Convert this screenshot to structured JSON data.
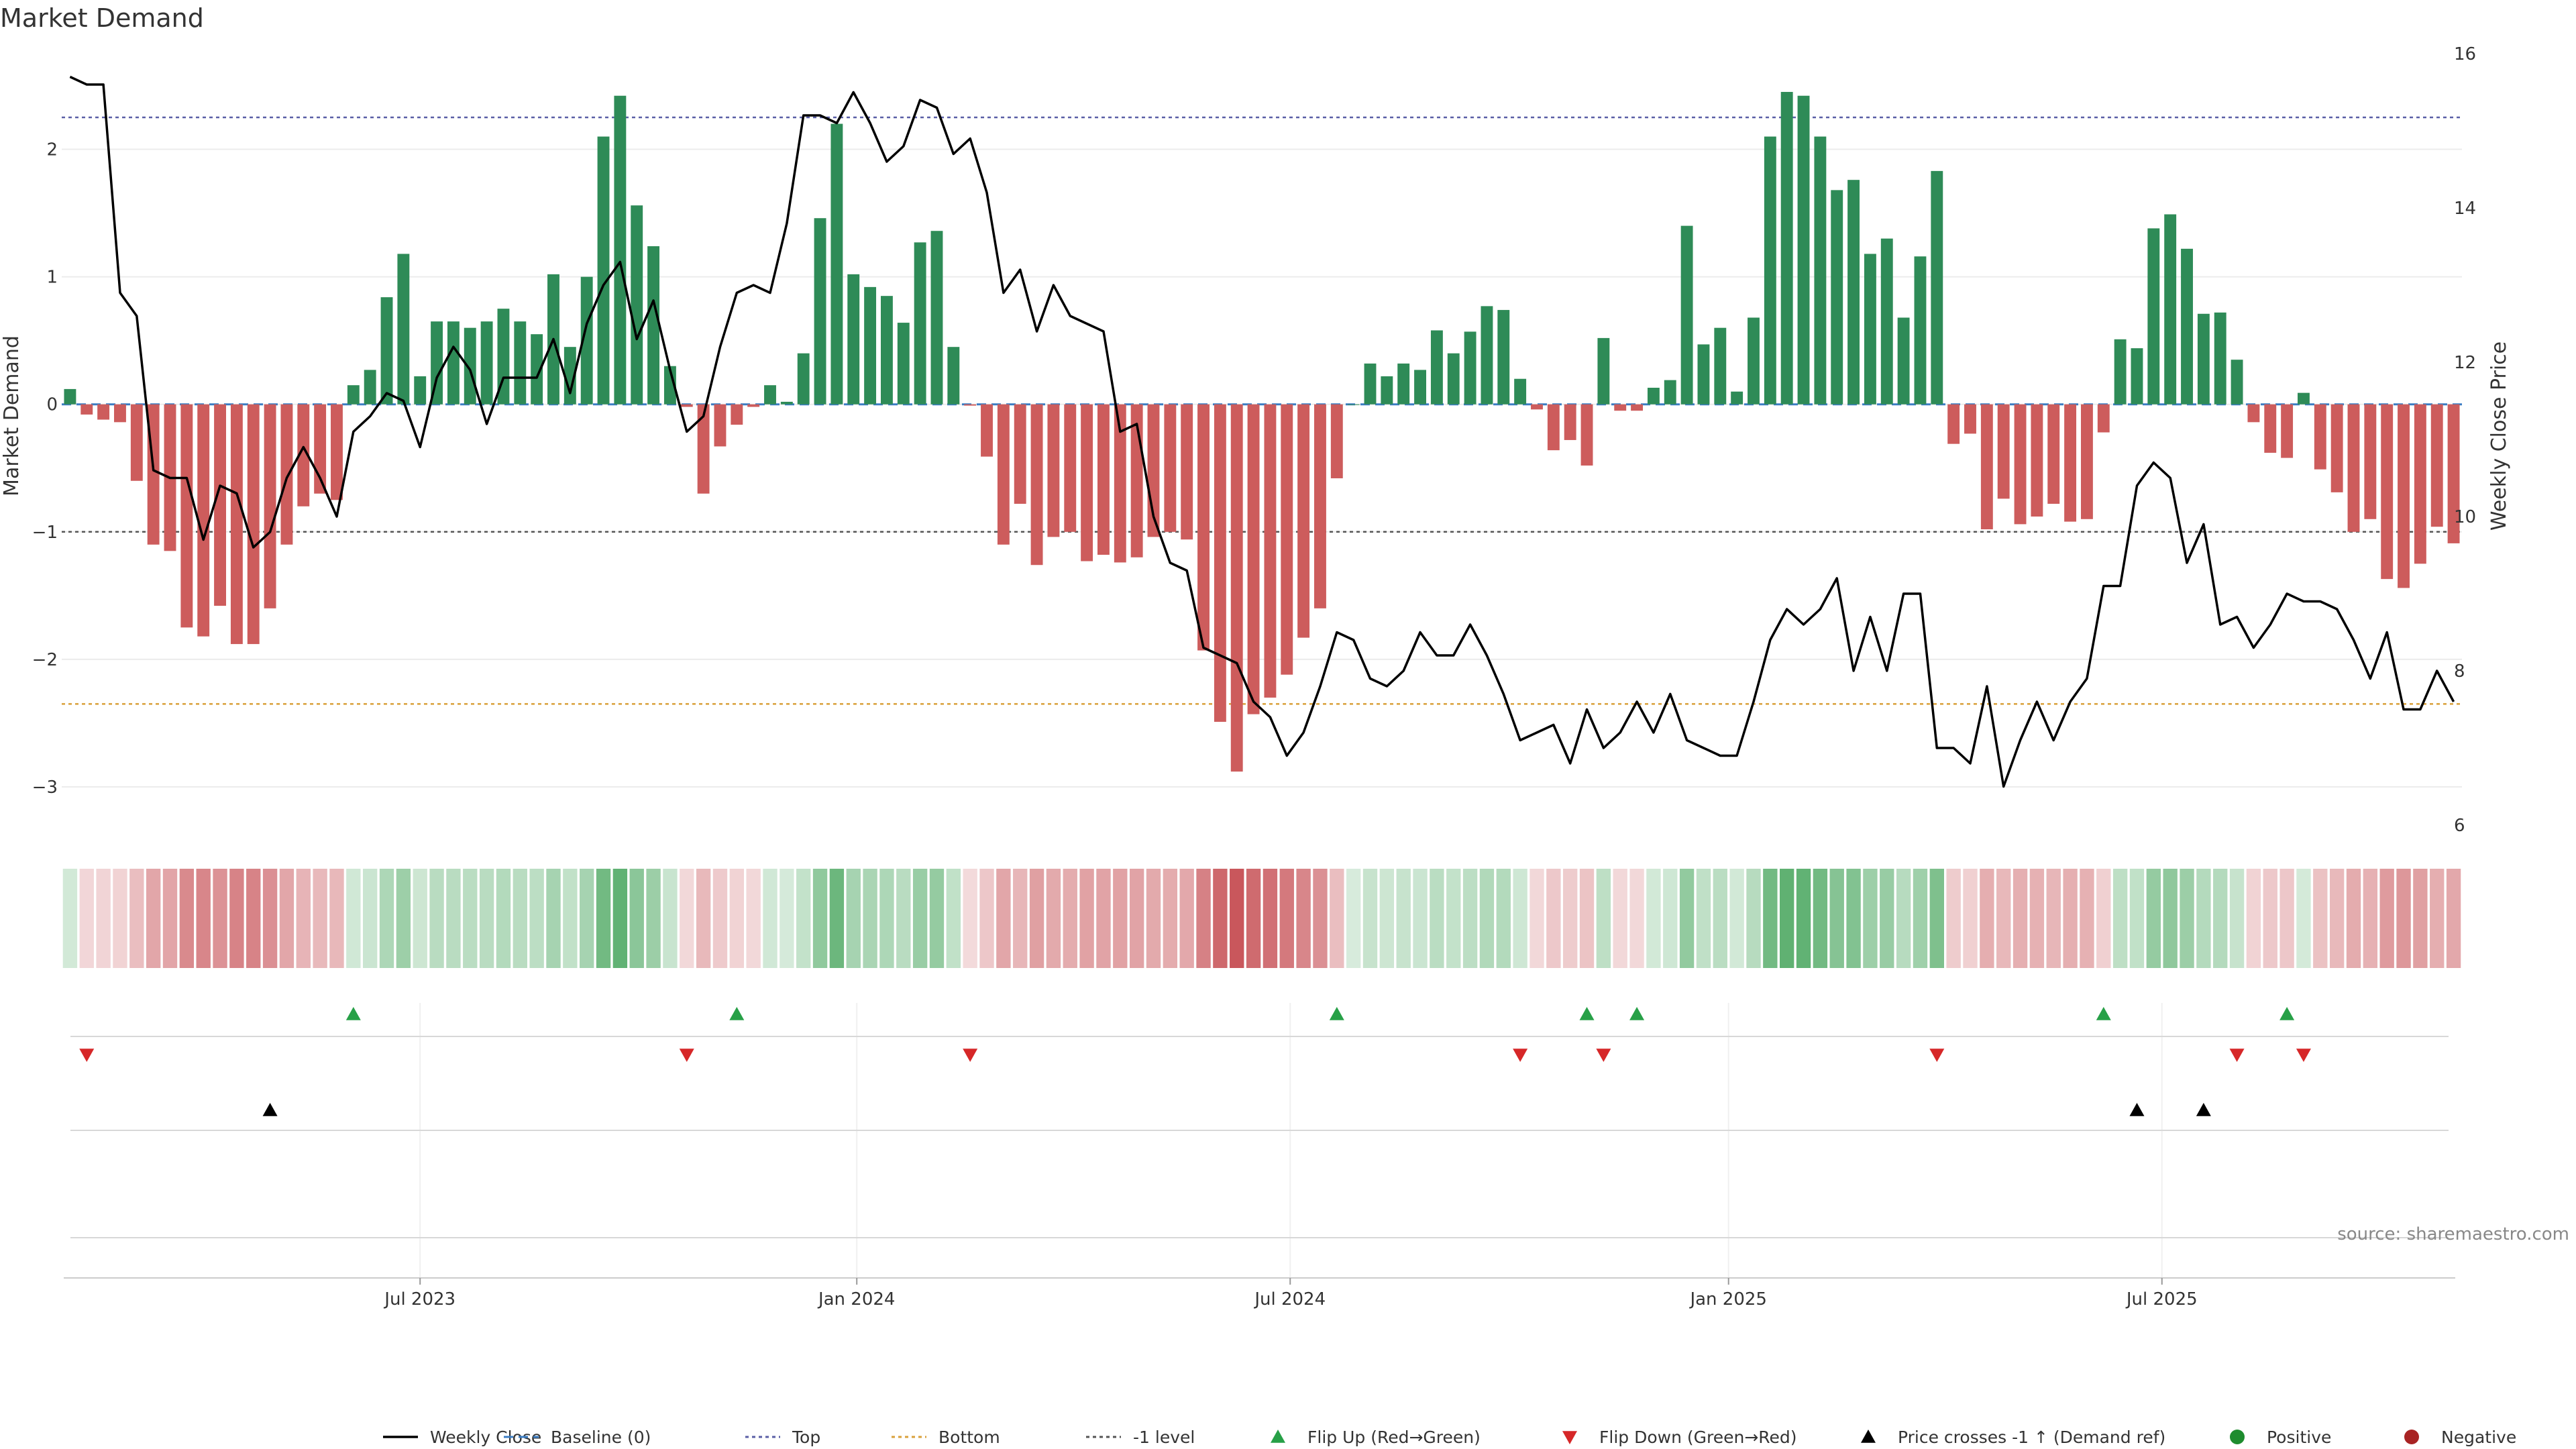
{
  "chart_data": {
    "type": "bar",
    "title": "Market Demand",
    "ylabel": "Market Demand",
    "y2label": "Weekly Close Price",
    "ylim": [
      -3.3,
      2.75
    ],
    "y2lim": [
      6,
      16
    ],
    "yticks": [
      {
        "value": 2,
        "label": "2"
      },
      {
        "value": 1,
        "label": "1"
      },
      {
        "value": 0,
        "label": "0"
      },
      {
        "value": -1,
        "label": "−1"
      },
      {
        "value": -2,
        "label": "−2"
      },
      {
        "value": -3,
        "label": "−3"
      }
    ],
    "y2ticks": [
      {
        "value": 16,
        "label": "16"
      },
      {
        "value": 14,
        "label": "14"
      },
      {
        "value": 12,
        "label": "12"
      },
      {
        "value": 10,
        "label": "10"
      },
      {
        "value": 8,
        "label": "8"
      },
      {
        "value": 6,
        "label": "6"
      }
    ],
    "xticks": [
      {
        "index": 21.5,
        "label": "Jul 2023"
      },
      {
        "index": 47.7,
        "label": "Jan 2024"
      },
      {
        "index": 73.7,
        "label": "Jul 2024"
      },
      {
        "index": 100,
        "label": "Jan 2025"
      },
      {
        "index": 126,
        "label": "Jul 2025"
      }
    ],
    "levels": {
      "top": 2.25,
      "bottom": -2.35,
      "minus_one": -1,
      "baseline": 0
    },
    "demand": [
      0.12,
      -0.08,
      -0.12,
      -0.14,
      -0.6,
      -1.1,
      -1.15,
      -1.75,
      -1.82,
      -1.58,
      -1.88,
      -1.88,
      -1.6,
      -1.1,
      -0.8,
      -0.7,
      -0.75,
      0.15,
      0.27,
      0.84,
      1.18,
      0.22,
      0.65,
      0.65,
      0.6,
      0.65,
      0.75,
      0.65,
      0.55,
      1.02,
      0.45,
      1.0,
      2.1,
      2.42,
      1.56,
      1.24,
      0.3,
      -0.02,
      -0.7,
      -0.33,
      -0.16,
      -0.02,
      0.15,
      0.02,
      0.4,
      1.46,
      2.2,
      1.02,
      0.92,
      0.85,
      0.64,
      1.27,
      1.36,
      0.45,
      -0.01,
      -0.41,
      -1.1,
      -0.78,
      -1.26,
      -1.04,
      -1.0,
      -1.23,
      -1.18,
      -1.24,
      -1.2,
      -1.04,
      -1.0,
      -1.06,
      -1.93,
      -2.49,
      -2.88,
      -2.43,
      -2.3,
      -2.12,
      -1.83,
      -1.6,
      -0.58,
      0.0,
      0.32,
      0.22,
      0.32,
      0.27,
      0.58,
      0.4,
      0.57,
      0.77,
      0.74,
      0.2,
      -0.04,
      -0.36,
      -0.28,
      -0.48,
      0.52,
      -0.05,
      -0.05,
      0.13,
      0.19,
      1.4,
      0.47,
      0.6,
      0.1,
      0.68,
      2.1,
      2.45,
      2.42,
      2.1,
      1.68,
      1.76,
      1.18,
      1.3,
      0.68,
      1.16,
      1.83,
      -0.31,
      -0.23,
      -0.98,
      -0.74,
      -0.94,
      -0.88,
      -0.78,
      -0.92,
      -0.9,
      -0.22,
      0.51,
      0.44,
      1.38,
      1.49,
      1.22,
      0.71,
      0.72,
      0.35,
      -0.14,
      -0.38,
      -0.42,
      0.09,
      -0.51,
      -0.69,
      -1.0,
      -0.9,
      -1.37,
      -1.44,
      -1.25,
      -0.96,
      -1.09
    ],
    "weekly_close": [
      15.7,
      15.6,
      15.6,
      12.9,
      12.6,
      10.6,
      10.5,
      10.5,
      9.7,
      10.4,
      10.3,
      9.6,
      9.8,
      10.5,
      10.9,
      10.5,
      10.0,
      11.1,
      11.3,
      11.6,
      11.5,
      10.9,
      11.8,
      12.2,
      11.9,
      11.2,
      11.8,
      11.8,
      11.8,
      12.3,
      11.6,
      12.5,
      13.0,
      13.3,
      12.3,
      12.8,
      11.9,
      11.1,
      11.3,
      12.2,
      12.9,
      13.0,
      12.9,
      13.8,
      15.2,
      15.2,
      15.1,
      15.5,
      15.1,
      14.6,
      14.8,
      15.4,
      15.3,
      14.7,
      14.9,
      14.2,
      12.9,
      13.2,
      12.4,
      13.0,
      12.6,
      12.5,
      12.4,
      11.1,
      11.2,
      10.0,
      9.4,
      9.3,
      8.3,
      8.2,
      8.1,
      7.6,
      7.4,
      6.9,
      7.2,
      7.8,
      8.5,
      8.4,
      7.9,
      7.8,
      8.0,
      8.5,
      8.2,
      8.2,
      8.6,
      8.2,
      7.7,
      7.1,
      7.2,
      7.3,
      6.8,
      7.5,
      7.0,
      7.2,
      7.6,
      7.2,
      7.7,
      7.1,
      7.0,
      6.9,
      6.9,
      7.6,
      8.4,
      8.8,
      8.6,
      8.8,
      9.2,
      8.0,
      8.7,
      8.0,
      9.0,
      9.0,
      7.0,
      7.0,
      6.8,
      7.8,
      6.5,
      7.1,
      7.6,
      7.1,
      7.6,
      7.9,
      9.1,
      9.1,
      10.4,
      10.7,
      10.5,
      9.4,
      9.9,
      8.6,
      8.7,
      8.3,
      8.6,
      9.0,
      8.9,
      8.9,
      8.8,
      8.4,
      7.9,
      8.5,
      7.5,
      7.5,
      8.0,
      7.6
    ],
    "flip_up": [
      17,
      40,
      76,
      91,
      94,
      122,
      133
    ],
    "flip_down": [
      1,
      37,
      54,
      87,
      92,
      112,
      130,
      134
    ],
    "price_cross": [
      12,
      124,
      128
    ],
    "legend": [
      {
        "label": "Weekly Close",
        "kind": "line",
        "color": "#000000"
      },
      {
        "label": "Baseline (0)",
        "kind": "dashed",
        "color": "#3b7dc4"
      },
      {
        "label": "Top",
        "kind": "dotted",
        "color": "#5a5fa6"
      },
      {
        "label": "Bottom",
        "kind": "dotted",
        "color": "#d9a13b"
      },
      {
        "label": "-1 level",
        "kind": "dotted",
        "color": "#555555"
      },
      {
        "label": "Flip Up (Red→Green)",
        "kind": "triangle-up",
        "color": "#27a047"
      },
      {
        "label": "Flip Down (Green→Red)",
        "kind": "triangle-down",
        "color": "#d62728"
      },
      {
        "label": "Price crosses -1 ↑ (Demand ref)",
        "kind": "triangle-up",
        "color": "#000000"
      },
      {
        "label": "Positive",
        "kind": "dot",
        "color": "#1e8c2e"
      },
      {
        "label": "Negative",
        "kind": "dot",
        "color": "#a82323"
      }
    ],
    "source": "source: sharemaestro.com"
  },
  "colors": {
    "positive": "#2e8b57",
    "negative": "#cd5c5c",
    "flip_up": "#27a047",
    "flip_down": "#d62728",
    "cross": "#000000",
    "top": "#5a5fa6",
    "bottom": "#d9a13b",
    "minus_one": "#555555",
    "baseline": "#3b7dc4"
  }
}
